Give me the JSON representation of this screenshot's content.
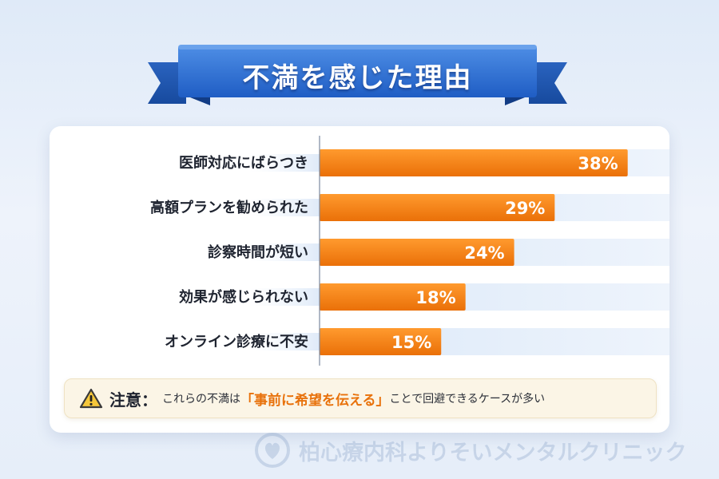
{
  "title": "不満を感じた理由",
  "chart_data": {
    "type": "bar",
    "orientation": "horizontal",
    "title": "不満を感じた理由",
    "categories": [
      "医師対応にばらつき",
      "高額プランを勧められた",
      "診察時間が短い",
      "効果が感じられない",
      "オンライン診療に不安"
    ],
    "values": [
      38,
      29,
      24,
      18,
      15
    ],
    "value_labels": [
      "38%",
      "29%",
      "24%",
      "18%",
      "15%"
    ],
    "unit": "%",
    "xlim": [
      0,
      40
    ],
    "grid": false,
    "legend": "none",
    "bar_color": "#f07f10"
  },
  "note": {
    "icon": "warning-icon",
    "heading": "注意：",
    "text_before": "これらの不満は",
    "emphasis": "「事前に希望を伝える」",
    "text_after": "ことで回避できるケースが多い"
  },
  "watermark": {
    "text": "柏心療内科よりそいメンタルクリニック"
  },
  "colors": {
    "accent": "#f07f10",
    "ribbon": "#2c6bd1",
    "emphasis": "#e8720c"
  }
}
